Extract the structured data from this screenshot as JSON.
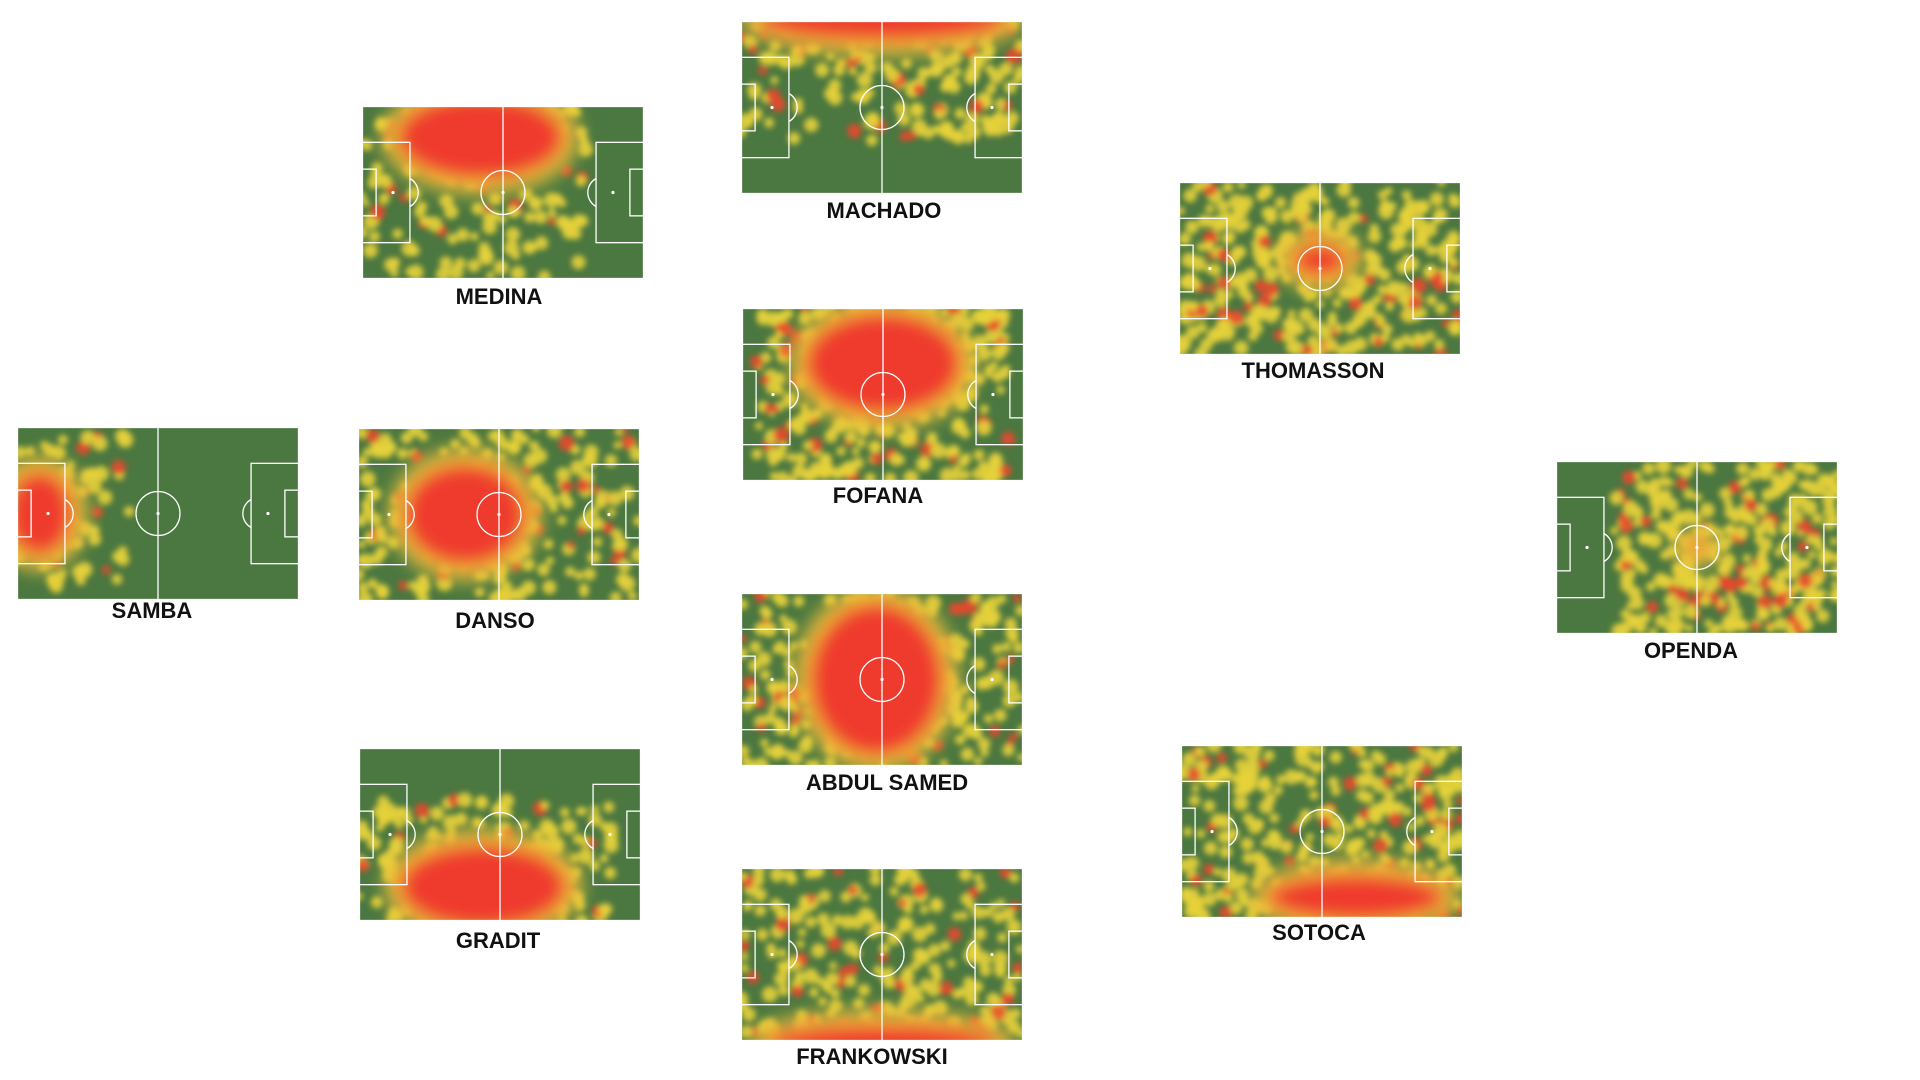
{
  "players": [
    {
      "name": "MACHADO"
    },
    {
      "name": "MEDINA"
    },
    {
      "name": "THOMASSON"
    },
    {
      "name": "FOFANA"
    },
    {
      "name": "SAMBA"
    },
    {
      "name": "DANSO"
    },
    {
      "name": "OPENDA"
    },
    {
      "name": "ABDUL SAMED"
    },
    {
      "name": "GRADIT"
    },
    {
      "name": "SOTOCA"
    },
    {
      "name": "FRANKOWSKI"
    }
  ]
}
